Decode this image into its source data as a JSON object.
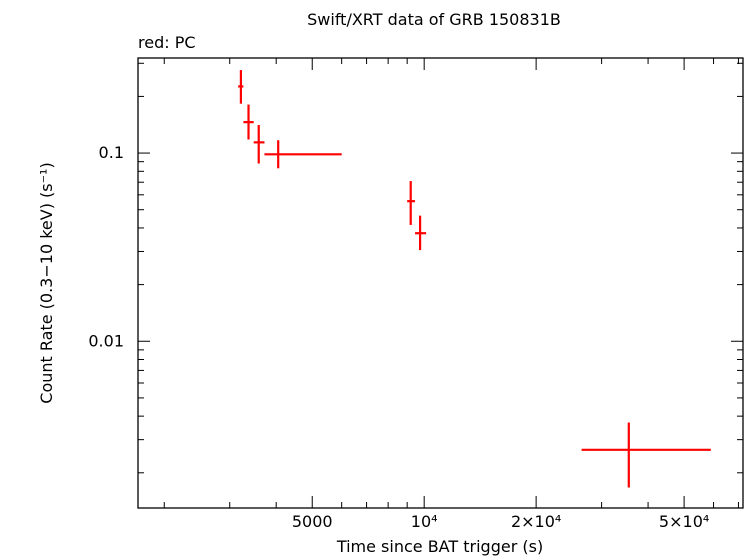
{
  "chart_data": {
    "type": "scatter",
    "title": "Swift/XRT data of GRB 150831B",
    "subtitle": "red: PC",
    "xlabel": "Time since BAT trigger (s)",
    "ylabel": "Count Rate (0.3−10 keV) (s⁻¹)",
    "x_scale": "log",
    "y_scale": "log",
    "xlim": [
      1700,
      72000
    ],
    "ylim": [
      0.0013,
      0.32
    ],
    "x_ticks": [
      {
        "value": 5000,
        "label": "5000"
      },
      {
        "value": 10000,
        "label": "10⁴"
      },
      {
        "value": 20000,
        "label": "2×10⁴"
      },
      {
        "value": 50000,
        "label": "5×10⁴"
      }
    ],
    "y_ticks": [
      {
        "value": 0.1,
        "label": "0.1"
      },
      {
        "value": 0.01,
        "label": "0.01"
      }
    ],
    "grid": false,
    "series": [
      {
        "name": "PC",
        "color": "#ff0000",
        "points": [
          {
            "x": 3215,
            "xlo": 3160,
            "xhi": 3265,
            "y": 0.226,
            "ylo": 0.183,
            "yhi": 0.276
          },
          {
            "x": 3370,
            "xlo": 3265,
            "xhi": 3480,
            "y": 0.146,
            "ylo": 0.118,
            "yhi": 0.181
          },
          {
            "x": 3590,
            "xlo": 3480,
            "xhi": 3720,
            "y": 0.114,
            "ylo": 0.088,
            "yhi": 0.141
          },
          {
            "x": 4050,
            "xlo": 3720,
            "xhi": 6000,
            "y": 0.0985,
            "ylo": 0.083,
            "yhi": 0.117
          },
          {
            "x": 9200,
            "xlo": 9000,
            "xhi": 9450,
            "y": 0.0555,
            "ylo": 0.0415,
            "yhi": 0.071
          },
          {
            "x": 9750,
            "xlo": 9450,
            "xhi": 10120,
            "y": 0.0375,
            "ylo": 0.0305,
            "yhi": 0.0465
          },
          {
            "x": 35500,
            "xlo": 26500,
            "xhi": 59000,
            "y": 0.00265,
            "ylo": 0.00167,
            "yhi": 0.0037
          }
        ]
      }
    ]
  }
}
